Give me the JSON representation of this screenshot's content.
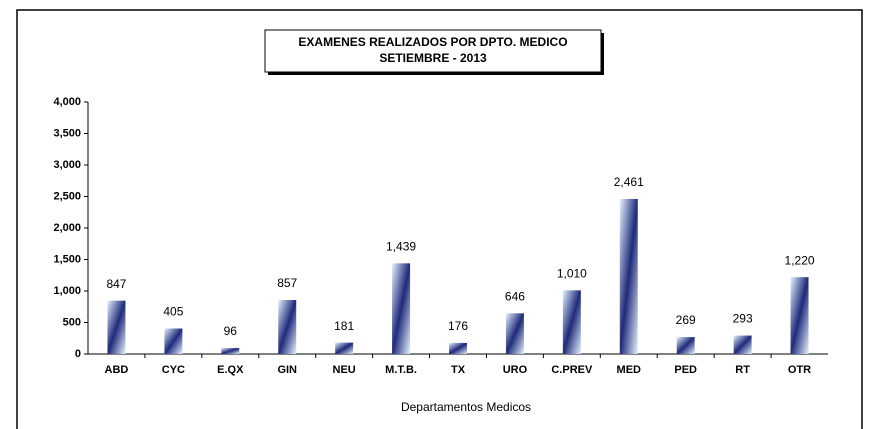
{
  "chart_data": {
    "type": "bar",
    "title": "EXAMENES REALIZADOS POR DPTO. MEDICO",
    "subtitle": "SETIEMBRE - 2013",
    "x_label": "Departamentos Medicos",
    "categories": [
      "ABD",
      "CYC",
      "E.QX",
      "GIN",
      "NEU",
      "M.T.B.",
      "TX",
      "URO",
      "C.PREV",
      "MED",
      "PED",
      "RT",
      "OTR"
    ],
    "values": [
      847,
      405,
      96,
      857,
      181,
      1439,
      176,
      646,
      1010,
      2461,
      269,
      293,
      1220
    ],
    "value_labels": [
      "847",
      "405",
      "96",
      "857",
      "181",
      "1,439",
      "176",
      "646",
      "1,010",
      "2,461",
      "269",
      "293",
      "1,220"
    ],
    "color": "#1f2a7a",
    "ylim": [
      0,
      4000
    ],
    "yticks": [
      0,
      500,
      {
        "value": 1000,
        "label": "1,000"
      },
      {
        "value": 1500,
        "label": "1,500"
      },
      {
        "value": 2000,
        "label": "2,000"
      },
      {
        "value": 2500,
        "label": "2,500"
      },
      {
        "value": 3000,
        "label": "3,000"
      },
      {
        "value": 3500,
        "label": "3,500"
      },
      {
        "value": 4000,
        "label": "4,000"
      }
    ],
    "grid": false
  }
}
